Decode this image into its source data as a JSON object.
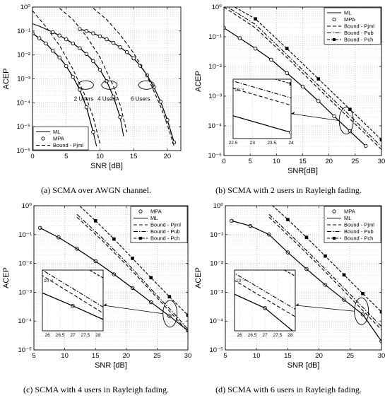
{
  "chart_data": [
    {
      "id": "a",
      "type": "line",
      "caption": "(a) SCMA over AWGN channel.",
      "xlabel": "SNR [dB]",
      "ylabel": "ACEP",
      "xlim": [
        0,
        22
      ],
      "ylim_log10": [
        -6,
        0
      ],
      "xticks": [
        0,
        5,
        10,
        15,
        20
      ],
      "yticks_exp": [
        0,
        -1,
        -2,
        -3,
        -4,
        -5,
        -6
      ],
      "grid": true,
      "legend": {
        "position": "bottom-left",
        "entries": [
          {
            "label": "ML",
            "style": "solid"
          },
          {
            "label": "MPA",
            "style": "circle"
          },
          {
            "label": "Bound - Pjml",
            "style": "dashed"
          }
        ]
      },
      "annotations": [
        {
          "label": "2 Users",
          "x": 7.6,
          "y": 0.00012
        },
        {
          "label": "4 Users",
          "x": 11.1,
          "y": 0.00012
        },
        {
          "label": "6 Users",
          "x": 16.0,
          "y": 0.00012
        }
      ],
      "ellipses": [
        {
          "x": 7.9,
          "y": 0.00055
        },
        {
          "x": 11.4,
          "y": 0.00055
        },
        {
          "x": 16.9,
          "y": 0.00055
        }
      ],
      "series": [
        {
          "name": "ML",
          "group": "2 Users",
          "style": "solid",
          "x": [
            0,
            1,
            2,
            3,
            4,
            5,
            6,
            7,
            8,
            9,
            9.5
          ],
          "y": [
            0.08,
            0.05,
            0.03,
            0.015,
            0.0078,
            0.0034,
            0.0012,
            0.00035,
            6.5e-05,
            6e-06,
            1.5e-06
          ]
        },
        {
          "name": "MPA",
          "group": "2 Users",
          "style": "circle",
          "x": [
            0,
            1,
            2,
            3,
            4,
            5,
            6,
            7,
            8,
            9
          ],
          "y": [
            0.08,
            0.05,
            0.03,
            0.015,
            0.0078,
            0.0034,
            0.0012,
            0.00035,
            6.5e-05,
            6e-06
          ]
        },
        {
          "name": "Bound - Pjml",
          "group": "2 Users",
          "style": "dashed",
          "x": [
            0,
            2,
            4,
            6,
            8,
            9,
            10
          ],
          "y": [
            0.7,
            0.15,
            0.025,
            0.0025,
            0.00015,
            2.5e-05,
            2e-06
          ]
        },
        {
          "name": "ML",
          "group": "4 Users",
          "style": "solid",
          "x": [
            0,
            1,
            2,
            3,
            4,
            5,
            6,
            7,
            8,
            9,
            10,
            11,
            12,
            13,
            13.5
          ],
          "y": [
            0.2,
            0.16,
            0.12,
            0.09,
            0.065,
            0.045,
            0.03,
            0.019,
            0.011,
            0.0055,
            0.0024,
            0.0008,
            0.00018,
            2.5e-05,
            4e-06
          ]
        },
        {
          "name": "MPA",
          "group": "4 Users",
          "style": "circle",
          "x": [
            3,
            4,
            5,
            6,
            7,
            8,
            9,
            10,
            11,
            12,
            13
          ],
          "y": [
            0.09,
            0.065,
            0.045,
            0.03,
            0.019,
            0.011,
            0.0055,
            0.0024,
            0.0008,
            0.00018,
            2.5e-05
          ]
        },
        {
          "name": "Bound - Pjml",
          "group": "4 Users",
          "style": "dashed",
          "x": [
            4,
            6,
            8,
            10,
            12,
            13,
            14
          ],
          "y": [
            0.9,
            0.3,
            0.06,
            0.008,
            0.0005,
            8e-05,
            6e-06
          ]
        },
        {
          "name": "ML",
          "group": "6 Users",
          "style": "solid",
          "x": [
            7,
            8,
            9,
            10,
            11,
            12,
            13,
            14,
            15,
            16,
            17,
            18,
            19,
            20,
            21
          ],
          "y": [
            0.12,
            0.1,
            0.08,
            0.06,
            0.045,
            0.032,
            0.021,
            0.013,
            0.0072,
            0.0035,
            0.0014,
            0.00045,
            0.00011,
            1.9e-05,
            2.2e-06
          ]
        },
        {
          "name": "MPA",
          "group": "6 Users",
          "style": "circle",
          "x": [
            7,
            8,
            9,
            10,
            11,
            12,
            13,
            14,
            15,
            16,
            17,
            18,
            19,
            20,
            21
          ],
          "y": [
            0.12,
            0.1,
            0.08,
            0.06,
            0.045,
            0.032,
            0.021,
            0.013,
            0.0072,
            0.0035,
            0.0014,
            0.00045,
            0.00011,
            1.9e-05,
            2.2e-06
          ]
        },
        {
          "name": "Bound - Pjml",
          "group": "6 Users",
          "style": "dashed",
          "x": [
            9,
            11,
            13,
            15,
            17,
            19,
            20,
            21
          ],
          "y": [
            0.9,
            0.3,
            0.07,
            0.012,
            0.0013,
            7e-05,
            1.2e-05,
            1.5e-06
          ]
        }
      ]
    },
    {
      "id": "b",
      "type": "line",
      "caption": "(b) SCMA with 2 users in Rayleigh fading.",
      "xlabel": "SNR[dB]",
      "ylabel": "ACEP",
      "xlim": [
        0,
        30
      ],
      "ylim_log10": [
        -5,
        0
      ],
      "xticks": [
        0,
        5,
        10,
        15,
        20,
        25,
        30
      ],
      "yticks_exp": [
        0,
        -1,
        -2,
        -3,
        -4,
        -5
      ],
      "grid": true,
      "legend": {
        "position": "top-right",
        "entries": [
          {
            "label": "ML",
            "style": "solid"
          },
          {
            "label": "MPA",
            "style": "circle"
          },
          {
            "label": "Bound - Pjml",
            "style": "dashed"
          },
          {
            "label": "Bound - Pub",
            "style": "dashdot"
          },
          {
            "label": "Bound - Pch",
            "style": "dashed-square"
          }
        ]
      },
      "zoom": {
        "x": 23.3,
        "y": 0.00015,
        "inset_xlim": [
          22.5,
          24
        ],
        "inset_xticks": [
          22.5,
          23,
          23.5,
          24
        ],
        "inset_ytick_label": "10⁻⁴"
      },
      "series": [
        {
          "name": "ML",
          "style": "solid",
          "x": [
            0,
            3,
            6,
            9,
            12,
            15,
            18,
            21,
            24,
            27
          ],
          "y": [
            0.2,
            0.09,
            0.04,
            0.017,
            0.006,
            0.0021,
            0.00068,
            0.00021,
            6.6e-05,
            2.1e-05
          ]
        },
        {
          "name": "MPA",
          "style": "circle",
          "x": [
            0,
            3,
            6,
            9,
            12,
            15,
            18,
            21,
            24,
            27
          ],
          "y": [
            0.2,
            0.09,
            0.04,
            0.017,
            0.006,
            0.0021,
            0.00068,
            0.00021,
            6.6e-05,
            2.1e-05
          ]
        },
        {
          "name": "Bound - Pjml",
          "style": "dashed",
          "x": [
            0,
            6,
            12,
            18,
            24,
            30
          ],
          "y": [
            1,
            0.2,
            0.02,
            0.0018,
            0.00017,
            1.6e-05
          ]
        },
        {
          "name": "Bound - Pub",
          "style": "dashdot",
          "x": [
            0,
            6,
            12,
            18,
            24,
            30
          ],
          "y": [
            1.2,
            0.26,
            0.025,
            0.0023,
            0.00022,
            2e-05
          ]
        },
        {
          "name": "Bound - Pch",
          "style": "dashed-square",
          "x": [
            0,
            6,
            12,
            18,
            24,
            30
          ],
          "y": [
            1.6,
            0.4,
            0.04,
            0.0038,
            0.00036,
            3.4e-05
          ]
        }
      ]
    },
    {
      "id": "c",
      "type": "line",
      "caption": "(c) SCMA with 4 users in Rayleigh fading.",
      "xlabel": "SNR [dB]",
      "ylabel": "ACEP",
      "xlim": [
        5,
        30
      ],
      "ylim_log10": [
        -5,
        0
      ],
      "xticks": [
        5,
        10,
        15,
        20,
        25,
        30
      ],
      "yticks_exp": [
        0,
        -1,
        -2,
        -3,
        -4,
        -5
      ],
      "grid": true,
      "legend": {
        "position": "top-right",
        "entries": [
          {
            "label": "MPA",
            "style": "circle"
          },
          {
            "label": "ML",
            "style": "solid"
          },
          {
            "label": "Bound - Pjml",
            "style": "dashed"
          },
          {
            "label": "Bound - Pub",
            "style": "dashdot"
          },
          {
            "label": "Bound - Pch",
            "style": "dashed-square"
          }
        ]
      },
      "zoom": {
        "x": 27.1,
        "y": 0.00018,
        "inset_xlim": [
          25.8,
          28.2
        ],
        "inset_xticks": [
          26,
          26.5,
          27,
          27.5,
          28
        ],
        "inset_ytick_label": "10⁻⁴"
      },
      "series": [
        {
          "name": "MPA",
          "style": "circle",
          "x": [
            6,
            9,
            12,
            15,
            18,
            21,
            24,
            27,
            30
          ],
          "y": [
            0.17,
            0.08,
            0.032,
            0.012,
            0.0042,
            0.0014,
            0.00045,
            0.00015,
            4.7e-05
          ]
        },
        {
          "name": "ML",
          "style": "solid",
          "x": [
            6,
            9,
            12,
            15,
            18,
            21,
            24,
            27,
            30
          ],
          "y": [
            0.17,
            0.08,
            0.032,
            0.012,
            0.0042,
            0.0014,
            0.00045,
            0.00015,
            4.7e-05
          ]
        },
        {
          "name": "Bound - Pjml",
          "style": "dashed",
          "x": [
            12,
            16,
            20,
            24,
            28,
            30
          ],
          "y": [
            0.4,
            0.065,
            0.009,
            0.0011,
            0.00013,
            4.2e-05
          ]
        },
        {
          "name": "Bound - Pub",
          "style": "dashdot",
          "x": [
            12,
            16,
            20,
            24,
            28,
            30
          ],
          "y": [
            0.5,
            0.08,
            0.011,
            0.0013,
            0.00016,
            5.2e-05
          ]
        },
        {
          "name": "Bound - Pch",
          "style": "dashed-square",
          "x": [
            12,
            15,
            18,
            21,
            24,
            27,
            30
          ],
          "y": [
            1.2,
            0.3,
            0.07,
            0.015,
            0.0032,
            0.0007,
            0.00016
          ]
        }
      ]
    },
    {
      "id": "d",
      "type": "line",
      "caption": "(d) SCMA with 6 users in Rayleigh fading.",
      "xlabel": "SNR [dB]",
      "ylabel": "ACEP",
      "xlim": [
        5,
        30
      ],
      "ylim_log10": [
        -5,
        0
      ],
      "xticks": [
        5,
        10,
        15,
        20,
        25,
        30
      ],
      "yticks_exp": [
        0,
        -1,
        -2,
        -3,
        -4,
        -5
      ],
      "grid": true,
      "legend": {
        "position": "top-right",
        "entries": [
          {
            "label": "MPA",
            "style": "circle"
          },
          {
            "label": "ML",
            "style": "solid"
          },
          {
            "label": "Bound - Pjml",
            "style": "dashed"
          },
          {
            "label": "Bound - Pub",
            "style": "dashdot"
          },
          {
            "label": "Bound - Pch",
            "style": "dashed-square"
          }
        ]
      },
      "zoom": {
        "x": 26.8,
        "y": 0.00022,
        "inset_xlim": [
          25.8,
          28.2
        ],
        "inset_xticks": [
          26,
          26.5,
          27,
          27.5,
          28
        ],
        "inset_ytick_label": "10⁻⁴"
      },
      "series": [
        {
          "name": "MPA",
          "style": "circle",
          "x": [
            6,
            9,
            12,
            15,
            18,
            21,
            24,
            27,
            30
          ],
          "y": [
            0.3,
            0.2,
            0.1,
            0.024,
            0.0064,
            0.0018,
            0.00055,
            0.00017,
            2e-05
          ]
        },
        {
          "name": "ML",
          "style": "solid",
          "x": [
            6,
            9,
            12,
            15,
            18,
            21,
            24,
            27,
            30
          ],
          "y": [
            0.3,
            0.2,
            0.1,
            0.024,
            0.0064,
            0.0018,
            0.00055,
            0.00017,
            2e-05
          ]
        },
        {
          "name": "Bound - Pjml",
          "style": "dashed",
          "x": [
            12,
            16,
            20,
            24,
            28,
            30
          ],
          "y": [
            0.4,
            0.06,
            0.0085,
            0.0011,
            0.00014,
            5e-05
          ]
        },
        {
          "name": "Bound - Pub",
          "style": "dashdot",
          "x": [
            12,
            16,
            20,
            24,
            28,
            30
          ],
          "y": [
            0.5,
            0.075,
            0.0105,
            0.0014,
            0.00018,
            6.5e-05
          ]
        },
        {
          "name": "Bound - Pch",
          "style": "dashed-square",
          "x": [
            12,
            15,
            18,
            21,
            24,
            27,
            30
          ],
          "y": [
            1.3,
            0.33,
            0.08,
            0.018,
            0.004,
            0.0009,
            0.00021
          ]
        }
      ]
    }
  ]
}
